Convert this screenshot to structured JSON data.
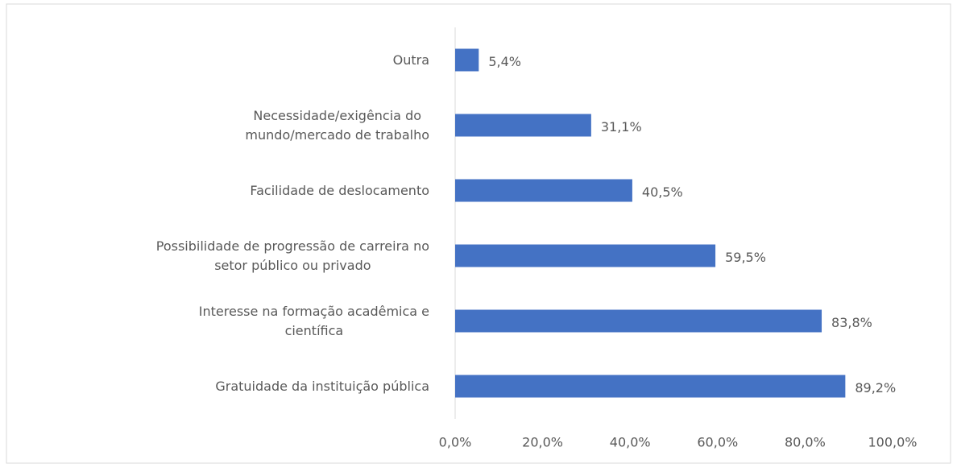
{
  "chart_data": {
    "type": "bar",
    "orientation": "horizontal",
    "categories": [
      "Outra",
      "Necessidade/exigência do\nmundo/mercado de trabalho",
      "Facilidade de deslocamento",
      "Possibilidade de progressão de carreira no\nsetor público ou privado",
      "Interesse na formação acadêmica e\ncientífica",
      "Gratuidade da instituição pública"
    ],
    "values": [
      5.4,
      31.1,
      40.5,
      59.5,
      83.8,
      89.2
    ],
    "value_labels": [
      "5,4%",
      "31,1%",
      "40,5%",
      "59,5%",
      "83,8%",
      "89,2%"
    ],
    "color": "#4472c4",
    "xlim": [
      0,
      100
    ],
    "xticks": [
      {
        "value": 0,
        "label": "0,0%"
      },
      {
        "value": 20,
        "label": "20,0%"
      },
      {
        "value": 40,
        "label": "40,0%"
      },
      {
        "value": 60,
        "label": "60,0%"
      },
      {
        "value": 80,
        "label": "80,0%"
      },
      {
        "value": 100,
        "label": "100,0%"
      }
    ],
    "grid": false
  }
}
